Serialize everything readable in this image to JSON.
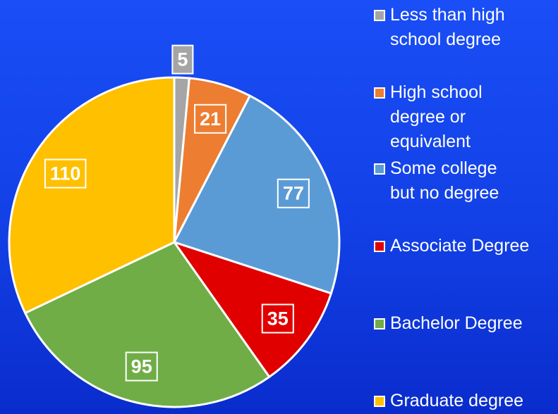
{
  "chart_data": {
    "type": "pie",
    "categories": [
      "Less than high school degree",
      "High school degree or equivalent",
      "Some college but no degree",
      "Associate Degree",
      "Bachelor Degree",
      "Graduate degree"
    ],
    "values": [
      5,
      21,
      77,
      35,
      95,
      110
    ],
    "colors": [
      "#a5a5a5",
      "#ed7d31",
      "#5b9bd5",
      "#e00000",
      "#70ad47",
      "#ffc000"
    ],
    "legend": "right"
  }
}
